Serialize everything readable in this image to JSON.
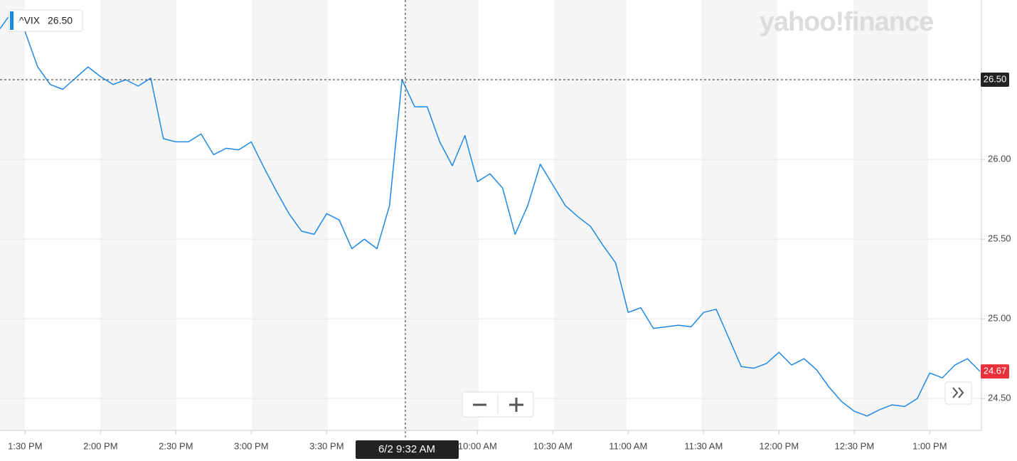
{
  "chart_data": {
    "type": "line",
    "brand": "yahoo!finance",
    "series": [
      {
        "name": "^VIX",
        "color": "#1e88e5",
        "end_label": "24.67",
        "values": [
          26.82,
          26.93,
          26.8,
          26.58,
          26.47,
          26.44,
          26.51,
          26.58,
          26.52,
          26.47,
          26.5,
          26.46,
          26.51,
          26.13,
          26.11,
          26.11,
          26.16,
          26.03,
          26.07,
          26.06,
          26.11,
          25.95,
          25.8,
          25.66,
          25.55,
          25.53,
          25.66,
          25.62,
          25.44,
          25.5,
          25.44,
          25.71,
          26.5,
          26.33,
          26.33,
          26.11,
          25.96,
          26.15,
          25.86,
          25.91,
          25.82,
          25.53,
          25.71,
          25.97,
          25.84,
          25.71,
          25.64,
          25.58,
          25.46,
          25.35,
          25.04,
          25.07,
          24.94,
          24.95,
          24.96,
          24.95,
          25.04,
          25.06,
          24.88,
          24.7,
          24.69,
          24.72,
          24.79,
          24.71,
          24.75,
          24.68,
          24.57,
          24.48,
          24.42,
          24.39,
          24.43,
          24.46,
          24.45,
          24.5,
          24.66,
          24.63,
          24.71,
          24.75,
          24.67
        ]
      }
    ],
    "xlim": [
      0,
      78
    ],
    "xticks": [
      {
        "value": 2,
        "label": "1:30 PM"
      },
      {
        "value": 8,
        "label": "2:00 PM"
      },
      {
        "value": 14,
        "label": "2:30 PM"
      },
      {
        "value": 20,
        "label": "3:00 PM"
      },
      {
        "value": 26,
        "label": "3:30 PM"
      },
      {
        "value": 38,
        "label": "10:00 AM"
      },
      {
        "value": 44,
        "label": "10:30 AM"
      },
      {
        "value": 50,
        "label": "11:00 AM"
      },
      {
        "value": 56,
        "label": "11:30 AM"
      },
      {
        "value": 62,
        "label": "12:00 PM"
      },
      {
        "value": 68,
        "label": "12:30 PM"
      },
      {
        "value": 74,
        "label": "1:00 PM"
      }
    ],
    "ylim": [
      24.3,
      27.0
    ],
    "yticks": [
      {
        "value": 24.5,
        "label": "24.50"
      },
      {
        "value": 25,
        "label": "25.00"
      },
      {
        "value": 25.5,
        "label": "25.50"
      },
      {
        "value": 26,
        "label": "26.00"
      }
    ],
    "grid": true,
    "crosshair": {
      "label": "6/2 9:32 AM",
      "value": 26.5,
      "value_label": "26.50"
    }
  }
}
